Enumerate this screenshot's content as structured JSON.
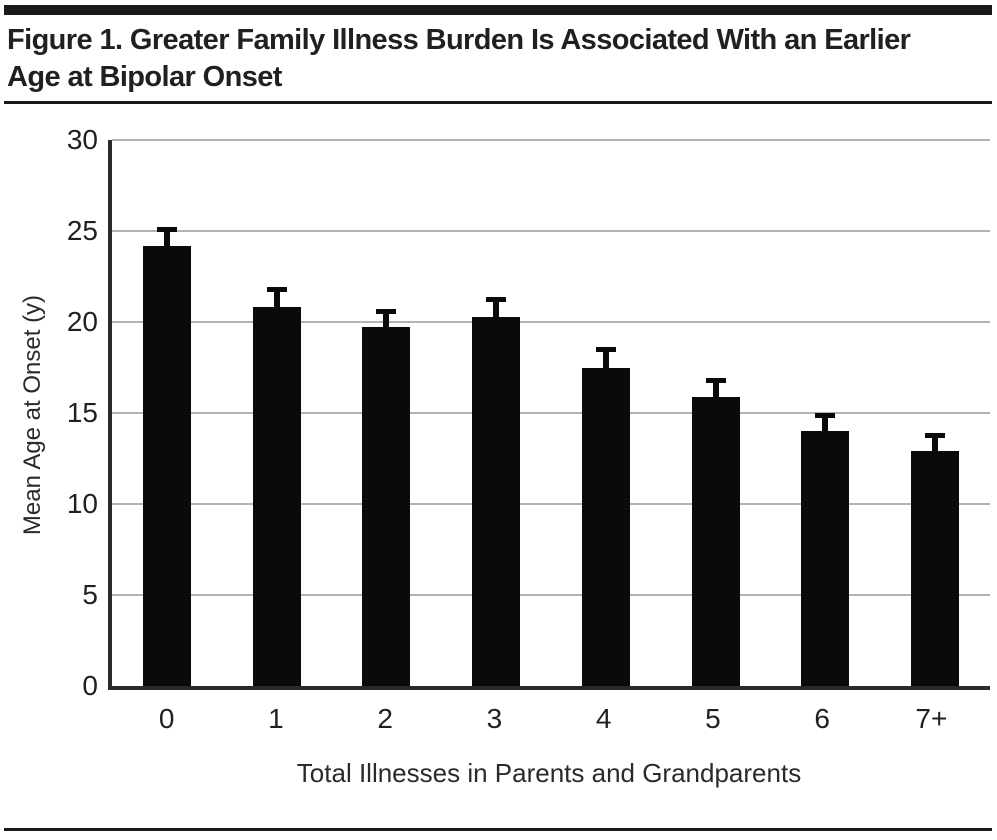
{
  "figure": {
    "title": "Figure 1. Greater Family Illness Burden Is Associated With an Earlier Age at Bipolar Onset"
  },
  "chart_data": {
    "type": "bar",
    "title": "Figure 1. Greater Family Illness Burden Is Associated With an Earlier Age at Bipolar Onset",
    "categories": [
      "0",
      "1",
      "2",
      "3",
      "4",
      "5",
      "6",
      "7+"
    ],
    "values": [
      24.2,
      20.8,
      19.7,
      20.3,
      17.5,
      15.9,
      14.0,
      12.9
    ],
    "errors_upper": [
      1.0,
      1.1,
      1.0,
      1.1,
      1.1,
      1.0,
      1.0,
      1.0
    ],
    "xlabel": "Total Illnesses in Parents and Grandparents",
    "ylabel": "Mean Age at Onset (y)",
    "ylim": [
      0,
      30
    ],
    "yticks": [
      0,
      5,
      10,
      15,
      20,
      25,
      30
    ],
    "grid": "horizontal gridlines at each y tick",
    "legend_position": "none",
    "bar_color": "#0a0a0a",
    "gridline_color": "#b1b3b5",
    "axis_color": "#2b2a2b",
    "text_color": "#231f20",
    "rule_color": "#1b191a"
  }
}
